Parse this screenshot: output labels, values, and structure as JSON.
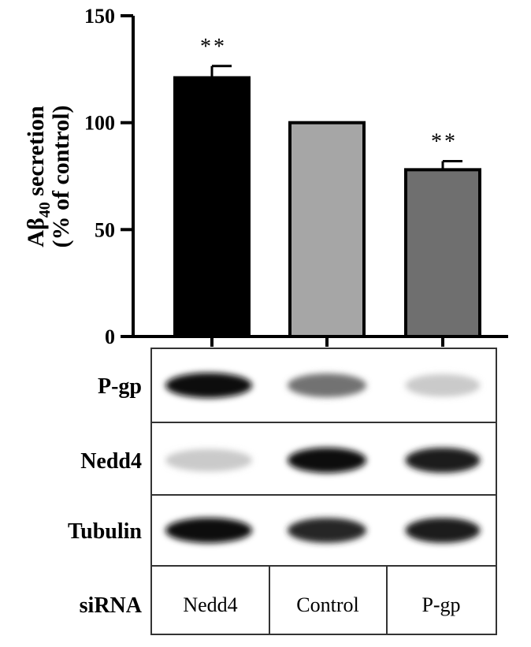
{
  "chart_data": {
    "type": "bar",
    "categories": [
      "Nedd4",
      "Control",
      "P-gp"
    ],
    "values": [
      121,
      100,
      78
    ],
    "errors": [
      5.5,
      0,
      4
    ],
    "significance": [
      "**",
      "",
      "**"
    ],
    "bar_colors": [
      "#000000",
      "#a6a6a6",
      "#6f6f6f"
    ],
    "ylim": [
      0,
      150
    ],
    "yticks": [
      0,
      50,
      100,
      150
    ],
    "ylabel_line1_main": "Aβ",
    "ylabel_line1_sub": "40",
    "ylabel_line1_rest": " secretion",
    "ylabel_line2": "(% of control)",
    "grid": false
  },
  "blot": {
    "rows": [
      {
        "label": "P-gp",
        "intensities": [
          1.0,
          0.55,
          0.15
        ]
      },
      {
        "label": "Nedd4",
        "intensities": [
          0.15,
          1.0,
          0.95
        ]
      },
      {
        "label": "Tubulin",
        "intensities": [
          1.0,
          0.9,
          0.95
        ]
      }
    ],
    "sirna_label": "siRNA",
    "lanes": [
      "Nedd4",
      "Control",
      "P-gp"
    ]
  }
}
